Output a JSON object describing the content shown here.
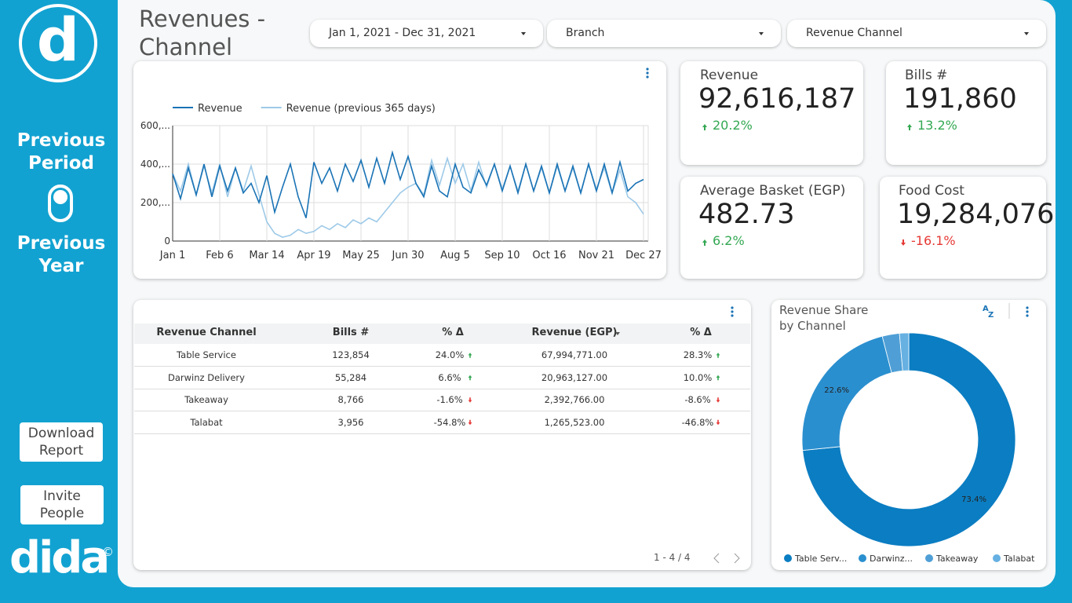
{
  "sidebar": {
    "logo": "d",
    "toggle_top": "Previous Period",
    "toggle_bottom": "Previous Year",
    "buttons": [
      "Download Report",
      "Invite People"
    ],
    "brand": "dida",
    "brand_mark": "©"
  },
  "header": {
    "title": "Revenues - Channel",
    "filters": [
      "Jan 1, 2021 - Dec 31, 2021",
      "Branch",
      "Revenue Channel"
    ]
  },
  "kpis": [
    {
      "label": "Revenue",
      "value": "92,616,187",
      "change": "20.2%"
    },
    {
      "label": "Bills #",
      "value": "191,860",
      "change": "13.2%"
    },
    {
      "label": "Average Basket (EGP)",
      "value": "482.73",
      "change": "6.2%"
    },
    {
      "label": "Food Cost",
      "value": "19,284,076",
      "change": "-16.1%"
    }
  ],
  "table": {
    "columns": [
      "Revenue Channel",
      "Bills #",
      "% Δ",
      "Revenue (EGP)",
      "% Δ"
    ],
    "rows": [
      [
        "Table Service",
        "123,854",
        "24.0%",
        "67,994,771.00",
        "28.3%"
      ],
      [
        "Darwinz Delivery",
        "55,284",
        "6.6%",
        "20,963,127.00",
        "10.0%"
      ],
      [
        "Takeaway",
        "8,766",
        "-1.6%",
        "2,392,766.00",
        "-8.6%"
      ],
      [
        "Talabat",
        "3,956",
        "-54.8%",
        "1,265,523.00",
        "-46.8%"
      ]
    ],
    "pagination": "1 - 4 / 4"
  },
  "chart_data": [
    {
      "type": "line",
      "categories": [
        "Jan 1",
        null,
        null,
        null,
        null,
        null,
        "Feb 6",
        null,
        null,
        null,
        null,
        null,
        "Mar 14",
        null,
        null,
        null,
        null,
        null,
        "Apr 19",
        null,
        null,
        null,
        null,
        null,
        "May 25",
        null,
        null,
        null,
        null,
        null,
        "Jun 30",
        null,
        null,
        null,
        null,
        null,
        "Aug 5",
        null,
        null,
        null,
        null,
        null,
        "Sep 10",
        null,
        null,
        null,
        null,
        null,
        "Oct 16",
        null,
        null,
        null,
        null,
        null,
        "Nov 21",
        null,
        null,
        null,
        null,
        null,
        "Dec 27"
      ],
      "series": [
        {
          "name": "Revenue",
          "color": "#1a73b5",
          "values": [
            350000,
            220000,
            380000,
            240000,
            400000,
            230000,
            390000,
            260000,
            380000,
            250000,
            300000,
            200000,
            340000,
            150000,
            280000,
            400000,
            230000,
            120000,
            410000,
            300000,
            380000,
            260000,
            400000,
            310000,
            420000,
            280000,
            430000,
            300000,
            460000,
            320000,
            440000,
            300000,
            230000,
            390000,
            260000,
            230000,
            400000,
            280000,
            250000,
            370000,
            290000,
            400000,
            260000,
            390000,
            250000,
            400000,
            260000,
            390000,
            250000,
            400000,
            260000,
            390000,
            250000,
            400000,
            260000,
            400000,
            250000,
            410000,
            260000,
            300000,
            320000
          ]
        },
        {
          "name": "Revenue (previous 365 days)",
          "color": "#9ecae8",
          "values": [
            350000,
            260000,
            400000,
            240000,
            390000,
            250000,
            400000,
            230000,
            380000,
            260000,
            390000,
            240000,
            100000,
            40000,
            20000,
            30000,
            60000,
            40000,
            50000,
            80000,
            60000,
            90000,
            70000,
            110000,
            90000,
            120000,
            100000,
            150000,
            200000,
            250000,
            280000,
            300000,
            240000,
            420000,
            290000,
            430000,
            300000,
            400000,
            260000,
            410000,
            280000,
            400000,
            270000,
            390000,
            260000,
            400000,
            260000,
            380000,
            250000,
            390000,
            260000,
            380000,
            250000,
            400000,
            270000,
            380000,
            250000,
            370000,
            230000,
            200000,
            140000
          ]
        }
      ],
      "ylim": [
        0,
        600000
      ],
      "yticks": [
        0,
        {
          "value": 200000,
          "label": "200,..."
        },
        {
          "value": 400000,
          "label": "400,..."
        },
        {
          "value": 600000,
          "label": "600,..."
        }
      ],
      "grid": true,
      "legend": "top"
    },
    {
      "type": "donut",
      "title": "Revenue Share by Channel",
      "categories": [
        "Table Serv...",
        "Darwinz...",
        "Takeaway",
        "Talabat"
      ],
      "values": [
        73.4,
        22.6,
        2.6,
        1.4
      ],
      "value_labels": [
        "73.4%",
        "22.6%",
        null,
        null
      ],
      "colors": [
        "#0b7dc2",
        "#2a8fcf",
        "#4f9fd6",
        "#66b0e2"
      ],
      "legend": "bottom"
    }
  ]
}
